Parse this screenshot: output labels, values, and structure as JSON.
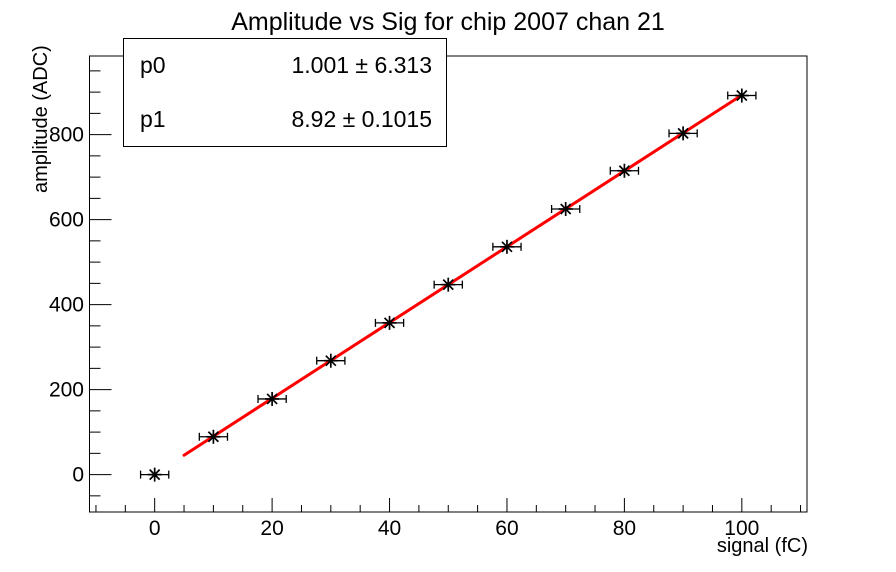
{
  "chart_data": {
    "type": "scatter",
    "title": "Amplitude vs Sig for chip 2007 chan 21",
    "xlabel": "signal (fC)",
    "ylabel": "amplitude (ADC)",
    "x": [
      0,
      10,
      20,
      30,
      40,
      50,
      60,
      70,
      80,
      90,
      100
    ],
    "y": [
      0,
      89,
      178,
      268,
      357,
      447,
      536,
      625,
      715,
      803,
      892
    ],
    "x_error": 2.4,
    "marker": {
      "style": "asterisk",
      "color": "#000000"
    },
    "fit": {
      "type": "linear",
      "p0": 1.001,
      "p0_err": 6.313,
      "p1": 8.92,
      "p1_err": 0.1015,
      "x_range": [
        5,
        100
      ],
      "color": "#ff0000",
      "line_width": 3
    },
    "axes": {
      "x": {
        "range": [
          -11.1,
          111.1
        ],
        "major_ticks": [
          0,
          20,
          40,
          60,
          80,
          100
        ],
        "minor_step": 5,
        "minor_start": -10,
        "minor_end": 110
      },
      "y": {
        "range": [
          -88,
          985
        ],
        "major_ticks": [
          0,
          200,
          400,
          600,
          800
        ],
        "minor_step": 50,
        "minor_start": -50,
        "minor_end": 950
      }
    },
    "grid": false,
    "legend": "none",
    "background": "#ffffff",
    "frame_color": "#000000"
  },
  "stats_box": {
    "rows": [
      {
        "label": "p0",
        "value": "1.001 ± 6.313"
      },
      {
        "label": "p1",
        "value": "8.92 ± 0.1015"
      }
    ]
  }
}
